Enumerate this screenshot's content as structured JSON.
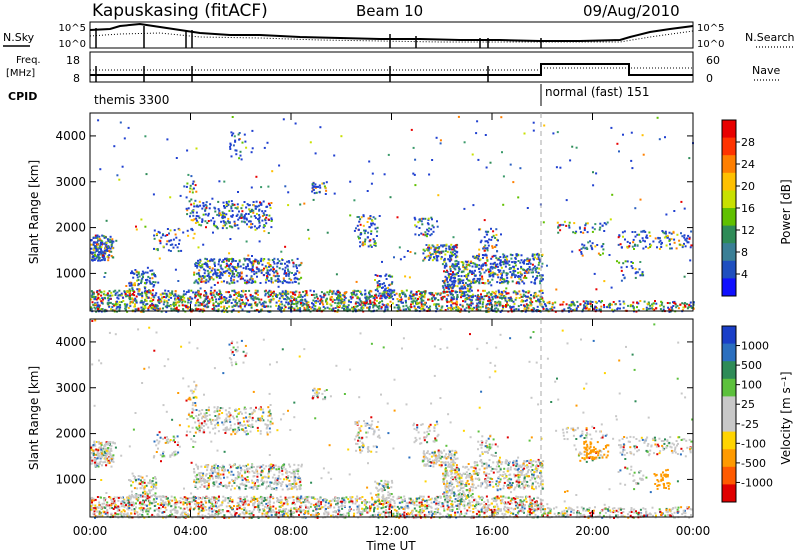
{
  "header": {
    "station": "Kapuskasing (fitACF)",
    "beam": "Beam 10",
    "date": "09/Aug/2010"
  },
  "panels": {
    "nsky_label": "N.Sky",
    "nsearch_label": "N.Search",
    "freq_label": "Freq.",
    "freq_unit": "[MHz]",
    "nave_label": "Nave",
    "cpid_label": "CPID",
    "noise_ticks": [
      "10^5",
      "10^0"
    ],
    "freq_ticks": [
      "18",
      "8"
    ],
    "nave_ticks": [
      "60",
      "0"
    ],
    "cpid_modes": [
      {
        "label": "themis 3300",
        "start": 0,
        "end": 18
      },
      {
        "label": "normal (fast) 151",
        "start": 18,
        "end": 24
      }
    ]
  },
  "chart_data": [
    {
      "type": "heatmap",
      "ylabel": "Slant Range [km]",
      "xlabel": "Time UT",
      "x_ticks": [
        "00:00",
        "04:00",
        "08:00",
        "12:00",
        "16:00",
        "20:00",
        "00:00"
      ],
      "xlim": [
        0,
        24
      ],
      "ylim": [
        180,
        4500
      ],
      "y_ticks": [
        1000,
        2000,
        3000,
        4000
      ],
      "colorbar_label": "Power [dB]",
      "colorbar_ticks": [
        "28",
        "24",
        "20",
        "16",
        "12",
        "8",
        "4"
      ],
      "colorbar_colors": [
        "#e80000",
        "#ff3300",
        "#ff7f00",
        "#ffc000",
        "#c8e000",
        "#60c000",
        "#2e8b57",
        "#3a7f96",
        "#1f4fbf",
        "#1010ff"
      ]
    },
    {
      "type": "heatmap",
      "ylabel": "Slant Range [km]",
      "xlabel": "Time UT",
      "x_ticks": [
        "00:00",
        "04:00",
        "08:00",
        "12:00",
        "16:00",
        "20:00",
        "00:00"
      ],
      "xlim": [
        0,
        24
      ],
      "ylim": [
        180,
        4500
      ],
      "y_ticks": [
        1000,
        2000,
        3000,
        4000
      ],
      "colorbar_label": "Velocity [m s⁻¹]",
      "colorbar_ticks": [
        "1000",
        "500",
        "100",
        "25",
        "-25",
        "-100",
        "-500",
        "-1000"
      ],
      "colorbar_colors": [
        "#1a3fc8",
        "#2b6fbf",
        "#2e8b57",
        "#5cc03c",
        "#c8c8c8",
        "#c8c8c8",
        "#ffd400",
        "#ff9a00",
        "#ff5a00",
        "#e00000"
      ]
    }
  ]
}
